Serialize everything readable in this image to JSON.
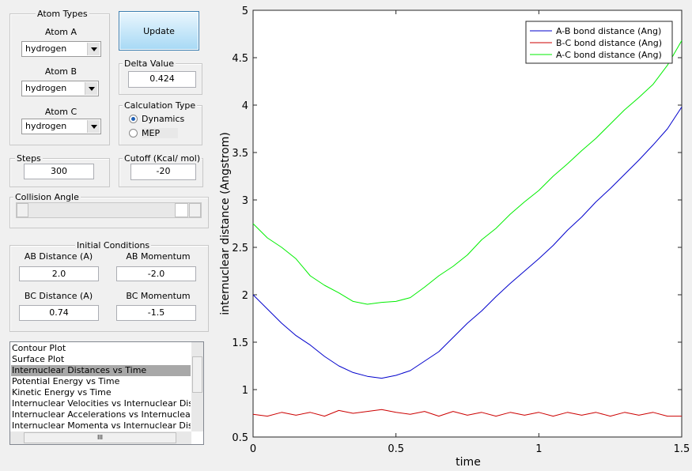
{
  "ui": {
    "atom_types": {
      "title": "Atom Types",
      "atoms": [
        {
          "label": "Atom A",
          "value": "hydrogen"
        },
        {
          "label": "Atom B",
          "value": "hydrogen"
        },
        {
          "label": "Atom C",
          "value": "hydrogen"
        }
      ]
    },
    "update_button": "Update",
    "delta_value": {
      "label": "Delta Value",
      "value": "0.424"
    },
    "calculation_type": {
      "label": "Calculation Type",
      "options": [
        "Dynamics",
        "MEP"
      ]
    },
    "steps": {
      "label": "Steps",
      "value": "300"
    },
    "cutoff": {
      "label": "Cutoff (Kcal/ mol)",
      "value": "-20"
    },
    "collision_angle": {
      "label": "Collision Angle"
    },
    "initial_conditions": {
      "title": "Initial Conditions",
      "fields": [
        {
          "label": "AB Distance (A)",
          "value": "2.0"
        },
        {
          "label": "AB Momentum",
          "value": "-2.0"
        },
        {
          "label": "BC Distance (A)",
          "value": "0.74"
        },
        {
          "label": "BC Momentum",
          "value": "-1.5"
        }
      ]
    },
    "plot_list": [
      "Contour Plot",
      "Surface Plot",
      "Internuclear Distances vs Time",
      "Potential Energy vs Time",
      "Kinetic Energy vs Time",
      "Internuclear Velocities vs Internuclear Distance",
      "Internuclear Accelerations vs Internuclear Distance",
      "Internuclear Momenta vs Internuclear Distance"
    ],
    "scroll_grip": "III"
  },
  "chart_data": {
    "type": "line",
    "xlabel": "time",
    "ylabel": "internuclear distance (Angstrom)",
    "x": [
      0,
      0.05,
      0.1,
      0.15,
      0.2,
      0.25,
      0.3,
      0.35,
      0.4,
      0.45,
      0.5,
      0.55,
      0.6,
      0.65,
      0.7,
      0.75,
      0.8,
      0.85,
      0.9,
      0.95,
      1.0,
      1.05,
      1.1,
      1.15,
      1.2,
      1.25,
      1.3,
      1.35,
      1.4,
      1.45,
      1.5
    ],
    "series": [
      {
        "name": "A-B bond distance (Ang)",
        "color": "#0000cc",
        "values": [
          2.0,
          1.85,
          1.7,
          1.57,
          1.47,
          1.35,
          1.25,
          1.18,
          1.14,
          1.12,
          1.15,
          1.2,
          1.3,
          1.4,
          1.55,
          1.7,
          1.83,
          1.98,
          2.12,
          2.25,
          2.38,
          2.52,
          2.68,
          2.82,
          2.98,
          3.12,
          3.27,
          3.42,
          3.58,
          3.75,
          3.98
        ]
      },
      {
        "name": "B-C bond distance (Ang)",
        "color": "#cc0000",
        "values": [
          0.74,
          0.72,
          0.76,
          0.73,
          0.76,
          0.72,
          0.78,
          0.75,
          0.77,
          0.79,
          0.76,
          0.74,
          0.77,
          0.72,
          0.77,
          0.73,
          0.76,
          0.72,
          0.76,
          0.73,
          0.76,
          0.72,
          0.76,
          0.73,
          0.76,
          0.72,
          0.76,
          0.73,
          0.76,
          0.72,
          0.72
        ]
      },
      {
        "name": "A-C bond distance (Ang)",
        "color": "#00ee00",
        "values": [
          2.75,
          2.6,
          2.5,
          2.38,
          2.2,
          2.1,
          2.02,
          1.93,
          1.9,
          1.92,
          1.93,
          1.97,
          2.08,
          2.2,
          2.3,
          2.42,
          2.58,
          2.7,
          2.85,
          2.98,
          3.1,
          3.25,
          3.38,
          3.52,
          3.65,
          3.8,
          3.95,
          4.08,
          4.22,
          4.42,
          4.68
        ]
      }
    ],
    "xlim": [
      0,
      1.5
    ],
    "ylim": [
      0.5,
      5
    ],
    "xticks": [
      0,
      0.5,
      1,
      1.5
    ],
    "yticks": [
      0.5,
      1,
      1.5,
      2,
      2.5,
      3,
      3.5,
      4,
      4.5,
      5
    ],
    "legend": "upper right"
  }
}
